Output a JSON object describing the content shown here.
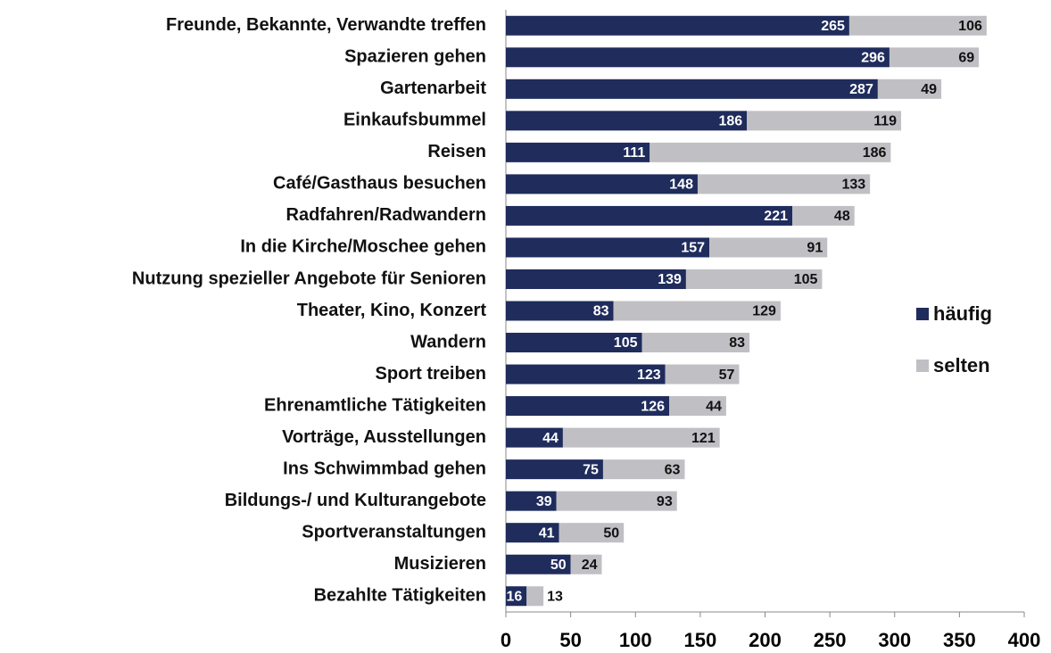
{
  "chart_data": {
    "type": "stacked_barh",
    "categories": [
      "Freunde, Bekannte, Verwandte treffen",
      "Spazieren gehen",
      "Gartenarbeit",
      "Einkaufsbummel",
      "Reisen",
      "Café/Gasthaus besuchen",
      "Radfahren/Radwandern",
      "In die Kirche/Moschee gehen",
      "Nutzung spezieller Angebote für Senioren",
      "Theater, Kino, Konzert",
      "Wandern",
      "Sport treiben",
      "Ehrenamtliche Tätigkeiten",
      "Vorträge, Ausstellungen",
      "Ins Schwimmbad gehen",
      "Bildungs-/ und Kulturangebote",
      "Sportveranstaltungen",
      "Musizieren",
      "Bezahlte Tätigkeiten"
    ],
    "series": [
      {
        "name": "häufig",
        "color": "#1f2c5c",
        "values": [
          265,
          296,
          287,
          186,
          111,
          148,
          221,
          157,
          139,
          83,
          105,
          123,
          126,
          44,
          75,
          39,
          41,
          50,
          16
        ]
      },
      {
        "name": "selten",
        "color": "#c0c0c4",
        "values": [
          106,
          69,
          49,
          119,
          186,
          133,
          48,
          91,
          105,
          129,
          83,
          57,
          44,
          121,
          63,
          93,
          50,
          24,
          13
        ]
      }
    ],
    "xlim": [
      0,
      400
    ],
    "xticks": [
      0,
      50,
      100,
      150,
      200,
      250,
      300,
      350,
      400
    ],
    "legend": "right"
  }
}
